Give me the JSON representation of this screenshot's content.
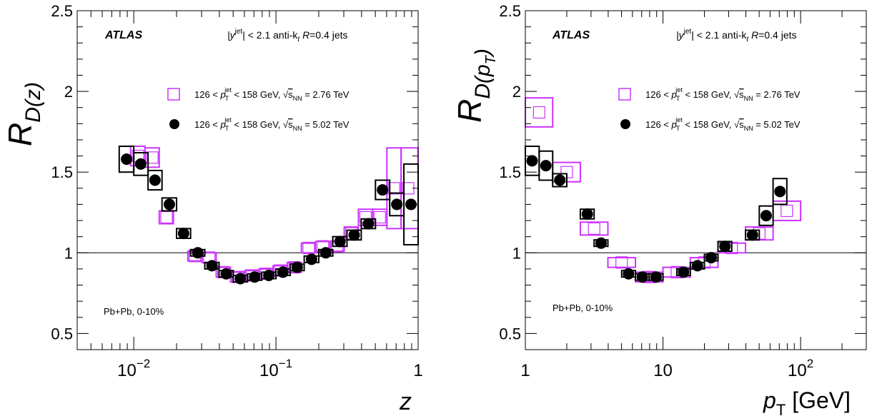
{
  "chart_data": [
    {
      "type": "scatter",
      "panel": "left",
      "x_scale": "log",
      "xlim": [
        0.004,
        1
      ],
      "ylim": [
        0.4,
        2.5
      ],
      "xlabel": "z",
      "ylabel": "R_D(z)",
      "ylabel_main": "R",
      "ylabel_sub": "D(z)",
      "x_tick_labels": [
        {
          "value": 0.01,
          "base": "10",
          "exp": "−2"
        },
        {
          "value": 0.1,
          "base": "10",
          "exp": "−1"
        },
        {
          "value": 1,
          "base": "1",
          "exp": ""
        }
      ],
      "y_tick_labels": [
        "0.5",
        "1",
        "1.5",
        "2",
        "2.5"
      ],
      "y_tick_values": [
        0.5,
        1,
        1.5,
        2,
        2.5
      ],
      "reference_line": 1,
      "atlas_label": "ATLAS",
      "selection_label": "|y jet| < 2.1 anti-kt R=0.4 jets",
      "centrality_label": "Pb+Pb, 0-10%",
      "legend": [
        {
          "name": "126 < pT jet < 158 GeV, √sNN = 2.76 TeV",
          "marker": "open-square",
          "color": "#cc33ff"
        },
        {
          "name": "126 < pT jet < 158 GeV, √sNN = 5.02 TeV",
          "marker": "filled-circle",
          "color": "#000000"
        }
      ],
      "series": [
        {
          "name": "2.76 TeV",
          "color": "#cc33ff",
          "marker": "open-square",
          "points": [
            {
              "x": 0.0107,
              "xlo": 0.0095,
              "xhi": 0.012,
              "y": 1.6,
              "sys": 0.06
            },
            {
              "x": 0.0135,
              "xlo": 0.012,
              "xhi": 0.0151,
              "y": 1.59,
              "sys": 0.06
            },
            {
              "x": 0.017,
              "xlo": 0.0151,
              "xhi": 0.019,
              "y": 1.22,
              "sys": 0.04
            },
            {
              "x": 0.0269,
              "xlo": 0.024,
              "xhi": 0.0302,
              "y": 0.98,
              "sys": 0.03
            },
            {
              "x": 0.0339,
              "xlo": 0.0302,
              "xhi": 0.038,
              "y": 0.97,
              "sys": 0.03
            },
            {
              "x": 0.0427,
              "xlo": 0.038,
              "xhi": 0.0479,
              "y": 0.88,
              "sys": 0.03
            },
            {
              "x": 0.0537,
              "xlo": 0.0479,
              "xhi": 0.0603,
              "y": 0.85,
              "sys": 0.03
            },
            {
              "x": 0.0676,
              "xlo": 0.0603,
              "xhi": 0.0759,
              "y": 0.86,
              "sys": 0.03
            },
            {
              "x": 0.0851,
              "xlo": 0.0759,
              "xhi": 0.0955,
              "y": 0.87,
              "sys": 0.03
            },
            {
              "x": 0.107,
              "xlo": 0.0955,
              "xhi": 0.12,
              "y": 0.89,
              "sys": 0.03
            },
            {
              "x": 0.135,
              "xlo": 0.12,
              "xhi": 0.151,
              "y": 0.91,
              "sys": 0.03
            },
            {
              "x": 0.17,
              "xlo": 0.151,
              "xhi": 0.19,
              "y": 1.03,
              "sys": 0.03
            },
            {
              "x": 0.214,
              "xlo": 0.19,
              "xhi": 0.24,
              "y": 1.04,
              "sys": 0.03
            },
            {
              "x": 0.269,
              "xlo": 0.24,
              "xhi": 0.302,
              "y": 1.04,
              "sys": 0.03
            },
            {
              "x": 0.339,
              "xlo": 0.302,
              "xhi": 0.38,
              "y": 1.12,
              "sys": 0.04
            },
            {
              "x": 0.427,
              "xlo": 0.38,
              "xhi": 0.479,
              "y": 1.22,
              "sys": 0.05
            },
            {
              "x": 0.537,
              "xlo": 0.479,
              "xhi": 0.603,
              "y": 1.22,
              "sys": 0.05
            },
            {
              "x": 0.676,
              "xlo": 0.603,
              "xhi": 0.759,
              "y": 1.4,
              "sys": 0.25
            },
            {
              "x": 0.851,
              "xlo": 0.759,
              "xhi": 1.0,
              "y": 1.4,
              "sys": 0.25
            }
          ]
        },
        {
          "name": "5.02 TeV",
          "color": "#000000",
          "marker": "filled-circle",
          "points": [
            {
              "x": 0.0089,
              "xlo": 0.0079,
              "xhi": 0.01,
              "y": 1.58,
              "sys": 0.08
            },
            {
              "x": 0.0112,
              "xlo": 0.01,
              "xhi": 0.0126,
              "y": 1.55,
              "sys": 0.07
            },
            {
              "x": 0.0141,
              "xlo": 0.0126,
              "xhi": 0.0158,
              "y": 1.45,
              "sys": 0.06
            },
            {
              "x": 0.0178,
              "xlo": 0.0158,
              "xhi": 0.02,
              "y": 1.3,
              "sys": 0.04
            },
            {
              "x": 0.0224,
              "xlo": 0.02,
              "xhi": 0.0251,
              "y": 1.12,
              "sys": 0.03
            },
            {
              "x": 0.0282,
              "xlo": 0.0251,
              "xhi": 0.0316,
              "y": 1.0,
              "sys": 0.02
            },
            {
              "x": 0.0355,
              "xlo": 0.0316,
              "xhi": 0.0398,
              "y": 0.92,
              "sys": 0.02
            },
            {
              "x": 0.0447,
              "xlo": 0.0398,
              "xhi": 0.0501,
              "y": 0.87,
              "sys": 0.02
            },
            {
              "x": 0.0562,
              "xlo": 0.0501,
              "xhi": 0.0631,
              "y": 0.84,
              "sys": 0.02
            },
            {
              "x": 0.0708,
              "xlo": 0.0631,
              "xhi": 0.0794,
              "y": 0.85,
              "sys": 0.02
            },
            {
              "x": 0.0891,
              "xlo": 0.0794,
              "xhi": 0.1,
              "y": 0.86,
              "sys": 0.02
            },
            {
              "x": 0.112,
              "xlo": 0.1,
              "xhi": 0.126,
              "y": 0.88,
              "sys": 0.02
            },
            {
              "x": 0.141,
              "xlo": 0.126,
              "xhi": 0.158,
              "y": 0.91,
              "sys": 0.02
            },
            {
              "x": 0.178,
              "xlo": 0.158,
              "xhi": 0.2,
              "y": 0.96,
              "sys": 0.02
            },
            {
              "x": 0.224,
              "xlo": 0.2,
              "xhi": 0.251,
              "y": 1.0,
              "sys": 0.02
            },
            {
              "x": 0.282,
              "xlo": 0.251,
              "xhi": 0.316,
              "y": 1.07,
              "sys": 0.03
            },
            {
              "x": 0.355,
              "xlo": 0.316,
              "xhi": 0.398,
              "y": 1.11,
              "sys": 0.03
            },
            {
              "x": 0.447,
              "xlo": 0.398,
              "xhi": 0.501,
              "y": 1.18,
              "sys": 0.03
            },
            {
              "x": 0.562,
              "xlo": 0.501,
              "xhi": 0.631,
              "y": 1.39,
              "sys": 0.06
            },
            {
              "x": 0.708,
              "xlo": 0.631,
              "xhi": 0.794,
              "y": 1.3,
              "sys": 0.07
            },
            {
              "x": 0.891,
              "xlo": 0.794,
              "xhi": 1.0,
              "y": 1.3,
              "sys": 0.25
            }
          ]
        }
      ]
    },
    {
      "type": "scatter",
      "panel": "right",
      "x_scale": "log",
      "xlim": [
        1,
        300
      ],
      "ylim": [
        0.4,
        2.5
      ],
      "xlabel": "pT [GeV]",
      "xlabel_main": "p",
      "xlabel_sub": "T",
      "xlabel_unit": " [GeV]",
      "ylabel": "R_D(pT)",
      "ylabel_main": "R",
      "ylabel_sub": "D(p",
      "ylabel_subsub": "T",
      "ylabel_close": ")",
      "x_tick_labels": [
        {
          "value": 1,
          "base": "1",
          "exp": ""
        },
        {
          "value": 10,
          "base": "10",
          "exp": ""
        },
        {
          "value": 100,
          "base": "10",
          "exp": "2"
        }
      ],
      "y_tick_labels": [
        "0.5",
        "1",
        "1.5",
        "2",
        "2.5"
      ],
      "y_tick_values": [
        0.5,
        1,
        1.5,
        2,
        2.5
      ],
      "reference_line": 1,
      "atlas_label": "ATLAS",
      "selection_label": "|y jet| < 2.1 anti-kt R=0.4 jets",
      "centrality_label": "Pb+Pb, 0-10%",
      "legend": [
        {
          "name": "126 < pT jet < 158 GeV, √sNN = 2.76 TeV",
          "marker": "open-square",
          "color": "#cc33ff"
        },
        {
          "name": "126 < pT jet < 158 GeV, √sNN = 5.02 TeV",
          "marker": "filled-circle",
          "color": "#000000"
        }
      ],
      "series": [
        {
          "name": "2.76 TeV",
          "color": "#cc33ff",
          "marker": "open-square",
          "points": [
            {
              "x": 1.26,
              "xlo": 1.0,
              "xhi": 1.58,
              "y": 1.87,
              "sys": 0.09
            },
            {
              "x": 2.0,
              "xlo": 1.58,
              "xhi": 2.51,
              "y": 1.5,
              "sys": 0.06
            },
            {
              "x": 3.16,
              "xlo": 2.51,
              "xhi": 3.98,
              "y": 1.15,
              "sys": 0.04
            },
            {
              "x": 5.01,
              "xlo": 3.98,
              "xhi": 6.31,
              "y": 0.94,
              "sys": 0.03
            },
            {
              "x": 7.94,
              "xlo": 6.31,
              "xhi": 10.0,
              "y": 0.85,
              "sys": 0.03
            },
            {
              "x": 12.6,
              "xlo": 10.0,
              "xhi": 15.8,
              "y": 0.88,
              "sys": 0.03
            },
            {
              "x": 20.0,
              "xlo": 15.8,
              "xhi": 25.1,
              "y": 0.94,
              "sys": 0.03
            },
            {
              "x": 31.6,
              "xlo": 25.1,
              "xhi": 39.8,
              "y": 1.03,
              "sys": 0.03
            },
            {
              "x": 50.1,
              "xlo": 39.8,
              "xhi": 63.1,
              "y": 1.12,
              "sys": 0.04
            },
            {
              "x": 79.4,
              "xlo": 63.1,
              "xhi": 100.0,
              "y": 1.26,
              "sys": 0.06
            }
          ]
        },
        {
          "name": "5.02 TeV",
          "color": "#000000",
          "marker": "filled-circle",
          "points": [
            {
              "x": 1.12,
              "xlo": 1.0,
              "xhi": 1.26,
              "y": 1.57,
              "sys": 0.09
            },
            {
              "x": 1.41,
              "xlo": 1.26,
              "xhi": 1.58,
              "y": 1.54,
              "sys": 0.09
            },
            {
              "x": 1.78,
              "xlo": 1.58,
              "xhi": 2.0,
              "y": 1.45,
              "sys": 0.04
            },
            {
              "x": 2.82,
              "xlo": 2.51,
              "xhi": 3.16,
              "y": 1.24,
              "sys": 0.03
            },
            {
              "x": 3.55,
              "xlo": 3.16,
              "xhi": 3.98,
              "y": 1.06,
              "sys": 0.02
            },
            {
              "x": 5.62,
              "xlo": 5.01,
              "xhi": 6.31,
              "y": 0.87,
              "sys": 0.02
            },
            {
              "x": 7.08,
              "xlo": 6.31,
              "xhi": 7.94,
              "y": 0.85,
              "sys": 0.02
            },
            {
              "x": 8.91,
              "xlo": 7.94,
              "xhi": 10.0,
              "y": 0.85,
              "sys": 0.02
            },
            {
              "x": 14.1,
              "xlo": 12.6,
              "xhi": 15.8,
              "y": 0.88,
              "sys": 0.02
            },
            {
              "x": 17.8,
              "xlo": 15.8,
              "xhi": 20.0,
              "y": 0.92,
              "sys": 0.02
            },
            {
              "x": 22.4,
              "xlo": 20.0,
              "xhi": 25.1,
              "y": 0.97,
              "sys": 0.02
            },
            {
              "x": 28.2,
              "xlo": 25.1,
              "xhi": 31.6,
              "y": 1.04,
              "sys": 0.03
            },
            {
              "x": 44.7,
              "xlo": 39.8,
              "xhi": 50.1,
              "y": 1.11,
              "sys": 0.03
            },
            {
              "x": 56.2,
              "xlo": 50.1,
              "xhi": 63.1,
              "y": 1.23,
              "sys": 0.06
            },
            {
              "x": 70.8,
              "xlo": 63.1,
              "xhi": 79.4,
              "y": 1.38,
              "sys": 0.08
            }
          ]
        }
      ]
    }
  ],
  "text": {
    "atlas": "ATLAS",
    "sel_y": "|y",
    "sel_jet": "jet",
    "sel_rest1": "| < 2.1 anti-k",
    "sel_t": "t",
    "sel_r": "R",
    "sel_rest2": "=0.4 jets",
    "leg_lo": "126  <  ",
    "leg_p": "p",
    "leg_T": "T",
    "leg_jet": "jet",
    "leg_mid": "  <  158 GeV, ",
    "leg_sqrt": "√",
    "leg_s": "s",
    "leg_NN": "NN",
    "leg_e1": " = 2.76 TeV",
    "leg_e2": " = 5.02 TeV",
    "centrality": "Pb+Pb, 0-10%"
  }
}
